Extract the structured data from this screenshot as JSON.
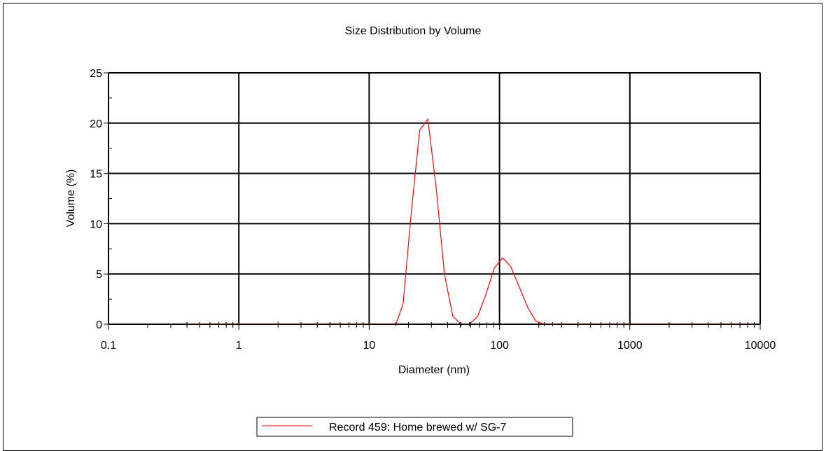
{
  "chart_data": {
    "type": "line",
    "title": "Size Distribution by Volume",
    "xlabel": "Diameter (nm)",
    "ylabel": "Volume (%)",
    "xscale": "log",
    "xlim": [
      0.1,
      10000
    ],
    "ylim": [
      0,
      25
    ],
    "x_ticks": [
      0.1,
      1,
      10,
      100,
      1000,
      10000
    ],
    "x_tick_labels": [
      "0.1",
      "1",
      "10",
      "100",
      "1000",
      "10000"
    ],
    "y_ticks": [
      0,
      5,
      10,
      15,
      20,
      25
    ],
    "y_tick_labels": [
      "0",
      "5",
      "10",
      "15",
      "20",
      "25"
    ],
    "grid": true,
    "legend_position": "bottom-center",
    "series": [
      {
        "name": "Record 459: Home brewed w/ SG-7",
        "color": "#ff0000",
        "x": [
          0.4,
          1,
          5,
          10,
          16,
          18.2,
          21,
          24.4,
          28.2,
          32.7,
          37.8,
          43.8,
          50.7,
          58.8,
          68.1,
          78.8,
          91.3,
          105.7,
          122.4,
          141.8,
          164.2,
          190.1,
          220.2,
          255,
          400,
          1000,
          5000,
          10000
        ],
        "y": [
          0,
          0,
          0,
          0,
          0,
          2,
          11,
          19.3,
          20.4,
          13.5,
          5,
          0.8,
          0,
          0,
          0.8,
          3,
          5.6,
          6.6,
          5.7,
          3.7,
          1.7,
          0.3,
          0,
          0,
          0,
          0,
          0,
          0
        ]
      }
    ]
  }
}
